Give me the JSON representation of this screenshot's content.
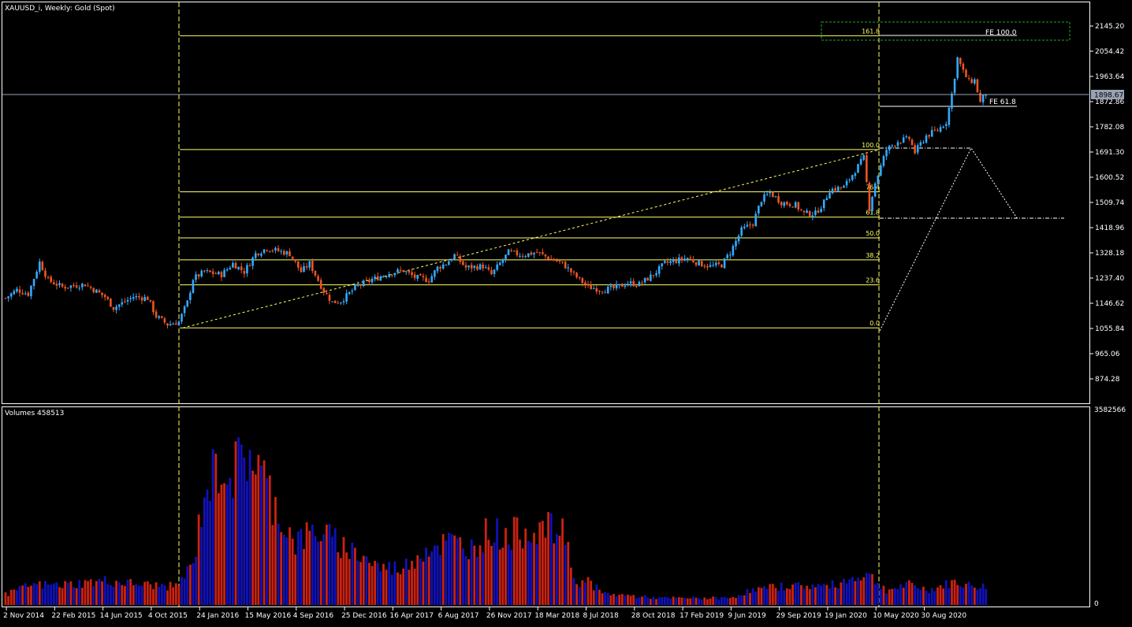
{
  "header": {
    "symbol_title": "XAUUSD_i, Weekly:  Gold (Spot)"
  },
  "volume_panel": {
    "title": "Volumes 458513",
    "max_label": "3582566",
    "zero_label": "0"
  },
  "current_price_label": "1898.67",
  "colors": {
    "background": "#000000",
    "bull": "#33aaff",
    "bear": "#ee5522",
    "volume_up": "#1111bb",
    "volume_down": "#cc2211",
    "fib": "#ffff66",
    "grid_frame": "#ffffff",
    "price_line": "#9aa3b5",
    "fe_box": "#22aa22"
  },
  "price_axis": {
    "ticks": [
      "2145.20",
      "2054.42",
      "1963.64",
      "1872.86",
      "1782.08",
      "1691.30",
      "1600.52",
      "1509.74",
      "1418.96",
      "1328.18",
      "1237.40",
      "1146.62",
      "1055.84",
      "965.06",
      "874.28"
    ],
    "tick_values": [
      2145.2,
      2054.42,
      1963.64,
      1872.86,
      1782.08,
      1691.3,
      1600.52,
      1509.74,
      1418.96,
      1328.18,
      1237.4,
      1146.62,
      1055.84,
      965.06,
      874.28
    ],
    "range": [
      790,
      2185
    ]
  },
  "time_axis": {
    "labels": [
      "2 Nov 2014",
      "22 Feb 2015",
      "14 Jun 2015",
      "4 Oct 2015",
      "24 Jan 2016",
      "15 May 2016",
      "4 Sep 2016",
      "25 Dec 2016",
      "16 Apr 2017",
      "6 Aug 2017",
      "26 Nov 2017",
      "18 Mar 2018",
      "8 Jul 2018",
      "28 Oct 2018",
      "17 Feb 2019",
      "9 Jun 2019",
      "29 Sep 2019",
      "19 Jan 2020",
      "10 May 2020",
      "30 Aug 2020"
    ]
  },
  "fibonacci": {
    "levels": [
      {
        "label": "161.8",
        "value": 2110
      },
      {
        "label": "100.0",
        "value": 1700
      },
      {
        "label": "76.4",
        "value": 1548
      },
      {
        "label": "61.8",
        "value": 1457
      },
      {
        "label": "50.0",
        "value": 1382
      },
      {
        "label": "38.2",
        "value": 1303
      },
      {
        "label": "23.6",
        "value": 1213
      },
      {
        "label": "0.0",
        "value": 1058
      }
    ]
  },
  "fibo_expansion": {
    "labels": [
      "FE 100.0",
      "FE 61.8"
    ],
    "values": [
      2098,
      1851
    ]
  },
  "chart_data": [
    {
      "type": "candlestick",
      "title": "XAUUSD_i, Weekly:  Gold (Spot)",
      "timeframe": "Weekly",
      "x_labels": [
        "2 Nov 2014",
        "22 Feb 2015",
        "14 Jun 2015",
        "4 Oct 2015",
        "24 Jan 2016",
        "15 May 2016",
        "4 Sep 2016",
        "25 Dec 2016",
        "16 Apr 2017",
        "6 Aug 2017",
        "26 Nov 2017",
        "18 Mar 2018",
        "8 Jul 2018",
        "28 Oct 2018",
        "17 Feb 2019",
        "9 Jun 2019",
        "29 Sep 2019",
        "19 Jan 2020",
        "10 May 2020",
        "30 Aug 2020"
      ],
      "close_path_anchors": [
        {
          "week": 0,
          "price": 1165
        },
        {
          "week": 4,
          "price": 1195
        },
        {
          "week": 8,
          "price": 1180
        },
        {
          "week": 12,
          "price": 1295
        },
        {
          "week": 15,
          "price": 1230
        },
        {
          "week": 20,
          "price": 1205
        },
        {
          "week": 28,
          "price": 1215
        },
        {
          "week": 35,
          "price": 1170
        },
        {
          "week": 38,
          "price": 1130
        },
        {
          "week": 45,
          "price": 1170
        },
        {
          "week": 50,
          "price": 1165
        },
        {
          "week": 53,
          "price": 1100
        },
        {
          "week": 57,
          "price": 1070
        },
        {
          "week": 61,
          "price": 1080
        },
        {
          "week": 64,
          "price": 1150
        },
        {
          "week": 66,
          "price": 1235
        },
        {
          "week": 70,
          "price": 1260
        },
        {
          "week": 76,
          "price": 1250
        },
        {
          "week": 80,
          "price": 1290
        },
        {
          "week": 84,
          "price": 1260
        },
        {
          "week": 88,
          "price": 1325
        },
        {
          "week": 92,
          "price": 1345
        },
        {
          "week": 100,
          "price": 1325
        },
        {
          "week": 104,
          "price": 1260
        },
        {
          "week": 107,
          "price": 1290
        },
        {
          "week": 112,
          "price": 1190
        },
        {
          "week": 115,
          "price": 1150
        },
        {
          "week": 118,
          "price": 1155
        },
        {
          "week": 124,
          "price": 1210
        },
        {
          "week": 130,
          "price": 1235
        },
        {
          "week": 135,
          "price": 1255
        },
        {
          "week": 140,
          "price": 1265
        },
        {
          "week": 144,
          "price": 1240
        },
        {
          "week": 149,
          "price": 1230
        },
        {
          "week": 152,
          "price": 1275
        },
        {
          "week": 155,
          "price": 1290
        },
        {
          "week": 158,
          "price": 1320
        },
        {
          "week": 162,
          "price": 1275
        },
        {
          "week": 168,
          "price": 1280
        },
        {
          "week": 171,
          "price": 1250
        },
        {
          "week": 174,
          "price": 1290
        },
        {
          "week": 177,
          "price": 1330
        },
        {
          "week": 182,
          "price": 1320
        },
        {
          "week": 187,
          "price": 1330
        },
        {
          "week": 191,
          "price": 1310
        },
        {
          "week": 196,
          "price": 1290
        },
        {
          "week": 200,
          "price": 1250
        },
        {
          "week": 205,
          "price": 1205
        },
        {
          "week": 210,
          "price": 1195
        },
        {
          "week": 214,
          "price": 1200
        },
        {
          "week": 219,
          "price": 1220
        },
        {
          "week": 223,
          "price": 1215
        },
        {
          "week": 228,
          "price": 1250
        },
        {
          "week": 232,
          "price": 1290
        },
        {
          "week": 236,
          "price": 1300
        },
        {
          "week": 240,
          "price": 1310
        },
        {
          "week": 244,
          "price": 1290
        },
        {
          "week": 248,
          "price": 1280
        },
        {
          "week": 252,
          "price": 1285
        },
        {
          "week": 255,
          "price": 1330
        },
        {
          "week": 259,
          "price": 1410
        },
        {
          "week": 263,
          "price": 1435
        },
        {
          "week": 266,
          "price": 1520
        },
        {
          "week": 269,
          "price": 1545
        },
        {
          "week": 273,
          "price": 1510
        },
        {
          "week": 278,
          "price": 1500
        },
        {
          "week": 281,
          "price": 1470
        },
        {
          "week": 285,
          "price": 1470
        },
        {
          "week": 288,
          "price": 1510
        },
        {
          "week": 290,
          "price": 1555
        },
        {
          "week": 295,
          "price": 1565
        },
        {
          "week": 298,
          "price": 1610
        },
        {
          "week": 302,
          "price": 1670
        },
        {
          "week": 304,
          "price": 1490
        },
        {
          "week": 306,
          "price": 1580
        },
        {
          "week": 310,
          "price": 1700
        },
        {
          "week": 314,
          "price": 1730
        },
        {
          "week": 318,
          "price": 1740
        },
        {
          "week": 320,
          "price": 1690
        },
        {
          "week": 324,
          "price": 1750
        },
        {
          "week": 328,
          "price": 1770
        },
        {
          "week": 331,
          "price": 1800
        },
        {
          "week": 333,
          "price": 1900
        },
        {
          "week": 335,
          "price": 2030
        },
        {
          "week": 337,
          "price": 1980
        },
        {
          "week": 339,
          "price": 1945
        },
        {
          "week": 341,
          "price": 1950
        },
        {
          "week": 343,
          "price": 1870
        },
        {
          "week": 345,
          "price": 1905
        }
      ],
      "y_range": [
        790,
        2185
      ]
    },
    {
      "type": "bar",
      "title": "Volumes 458513",
      "y_max": 3582566,
      "volume_anchors": [
        {
          "week": 0,
          "value": 180000
        },
        {
          "week": 9,
          "value": 350000
        },
        {
          "week": 20,
          "value": 350000
        },
        {
          "week": 35,
          "value": 420000
        },
        {
          "week": 50,
          "value": 350000
        },
        {
          "week": 60,
          "value": 320000
        },
        {
          "week": 66,
          "value": 700000
        },
        {
          "week": 70,
          "value": 2000000
        },
        {
          "week": 76,
          "value": 2500000
        },
        {
          "week": 80,
          "value": 2300000
        },
        {
          "week": 86,
          "value": 2700000
        },
        {
          "week": 90,
          "value": 2300000
        },
        {
          "week": 96,
          "value": 1600000
        },
        {
          "week": 102,
          "value": 1100000
        },
        {
          "week": 110,
          "value": 1300000
        },
        {
          "week": 116,
          "value": 1100000
        },
        {
          "week": 124,
          "value": 900000
        },
        {
          "week": 132,
          "value": 650000
        },
        {
          "week": 140,
          "value": 650000
        },
        {
          "week": 148,
          "value": 1000000
        },
        {
          "week": 156,
          "value": 1100000
        },
        {
          "week": 164,
          "value": 1000000
        },
        {
          "week": 170,
          "value": 1300000
        },
        {
          "week": 176,
          "value": 1200000
        },
        {
          "week": 186,
          "value": 1350000
        },
        {
          "week": 194,
          "value": 1300000
        },
        {
          "week": 198,
          "value": 1150000
        },
        {
          "week": 200,
          "value": 400000
        },
        {
          "week": 205,
          "value": 420000
        },
        {
          "week": 210,
          "value": 200000
        },
        {
          "week": 230,
          "value": 120000
        },
        {
          "week": 255,
          "value": 120000
        },
        {
          "week": 262,
          "value": 250000
        },
        {
          "week": 275,
          "value": 340000
        },
        {
          "week": 290,
          "value": 330000
        },
        {
          "week": 303,
          "value": 550000
        },
        {
          "week": 310,
          "value": 260000
        },
        {
          "week": 318,
          "value": 350000
        },
        {
          "week": 325,
          "value": 260000
        },
        {
          "week": 334,
          "value": 400000
        },
        {
          "week": 340,
          "value": 330000
        },
        {
          "week": 345,
          "value": 320000
        }
      ]
    }
  ]
}
